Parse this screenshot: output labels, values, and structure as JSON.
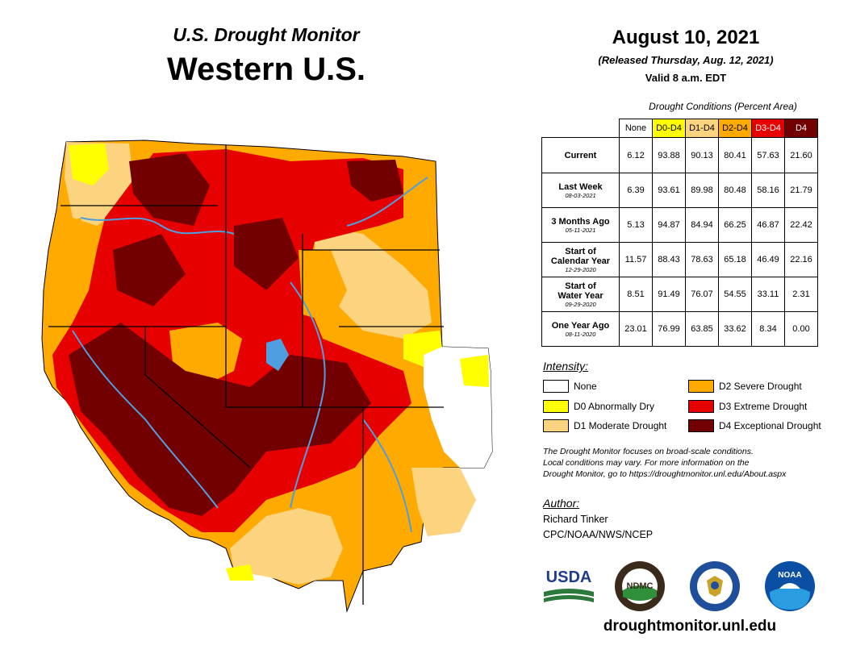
{
  "header": {
    "title": "U.S. Drought Monitor",
    "region": "Western U.S.",
    "date": "August 10, 2021",
    "released": "(Released Thursday, Aug. 12, 2021)",
    "valid": "Valid 8 a.m. EDT"
  },
  "table": {
    "caption": "Drought Conditions (Percent Area)",
    "columns": [
      {
        "label": "None",
        "bg": "#ffffff",
        "fg": "#000000"
      },
      {
        "label": "D0-D4",
        "bg": "#ffff00",
        "fg": "#000000"
      },
      {
        "label": "D1-D4",
        "bg": "#fcd37f",
        "fg": "#000000"
      },
      {
        "label": "D2-D4",
        "bg": "#ffaa00",
        "fg": "#000000"
      },
      {
        "label": "D3-D4",
        "bg": "#e60000",
        "fg": "#ffffff"
      },
      {
        "label": "D4",
        "bg": "#730000",
        "fg": "#ffffff"
      }
    ],
    "rows": [
      {
        "label": "Current",
        "label2": "",
        "sub": "",
        "values": [
          "6.12",
          "93.88",
          "90.13",
          "80.41",
          "57.63",
          "21.60"
        ]
      },
      {
        "label": "Last Week",
        "label2": "",
        "sub": "08-03-2021",
        "values": [
          "6.39",
          "93.61",
          "89.98",
          "80.48",
          "58.16",
          "21.79"
        ]
      },
      {
        "label": "3 Months Ago",
        "label2": "",
        "sub": "05-11-2021",
        "values": [
          "5.13",
          "94.87",
          "84.94",
          "66.25",
          "46.87",
          "22.42"
        ]
      },
      {
        "label": "Start of",
        "label2": "Calendar Year",
        "sub": "12-29-2020",
        "values": [
          "11.57",
          "88.43",
          "78.63",
          "65.18",
          "46.49",
          "22.16"
        ]
      },
      {
        "label": "Start of",
        "label2": "Water Year",
        "sub": "09-29-2020",
        "values": [
          "8.51",
          "91.49",
          "76.07",
          "54.55",
          "33.11",
          "2.31"
        ]
      },
      {
        "label": "One Year Ago",
        "label2": "",
        "sub": "08-11-2020",
        "values": [
          "23.01",
          "76.99",
          "63.85",
          "33.62",
          "8.34",
          "0.00"
        ]
      }
    ]
  },
  "legend": {
    "title": "Intensity:",
    "items": [
      {
        "label": "None",
        "color": "#ffffff"
      },
      {
        "label": "D0 Abnormally Dry",
        "color": "#ffff00"
      },
      {
        "label": "D1 Moderate Drought",
        "color": "#fcd37f"
      },
      {
        "label": "D2 Severe Drought",
        "color": "#ffaa00"
      },
      {
        "label": "D3 Extreme Drought",
        "color": "#e60000"
      },
      {
        "label": "D4 Exceptional Drought",
        "color": "#730000"
      }
    ]
  },
  "note": {
    "line1": "The Drought Monitor focuses on broad-scale conditions.",
    "line2": "Local conditions may vary. For more information on the",
    "line3": "Drought Monitor, go to https://droughtmonitor.unl.edu/About.aspx"
  },
  "author": {
    "title": "Author:",
    "name": "Richard Tinker",
    "org": "CPC/NOAA/NWS/NCEP"
  },
  "logos": {
    "usda": "USDA",
    "ndmc": "NDMC",
    "noaa": "NOAA"
  },
  "footer": {
    "url": "droughtmonitor.unl.edu"
  },
  "colors": {
    "none": "#ffffff",
    "d0": "#ffff00",
    "d1": "#fcd37f",
    "d2": "#ffaa00",
    "d3": "#e60000",
    "d4": "#730000",
    "water": "#4f9fe0"
  }
}
